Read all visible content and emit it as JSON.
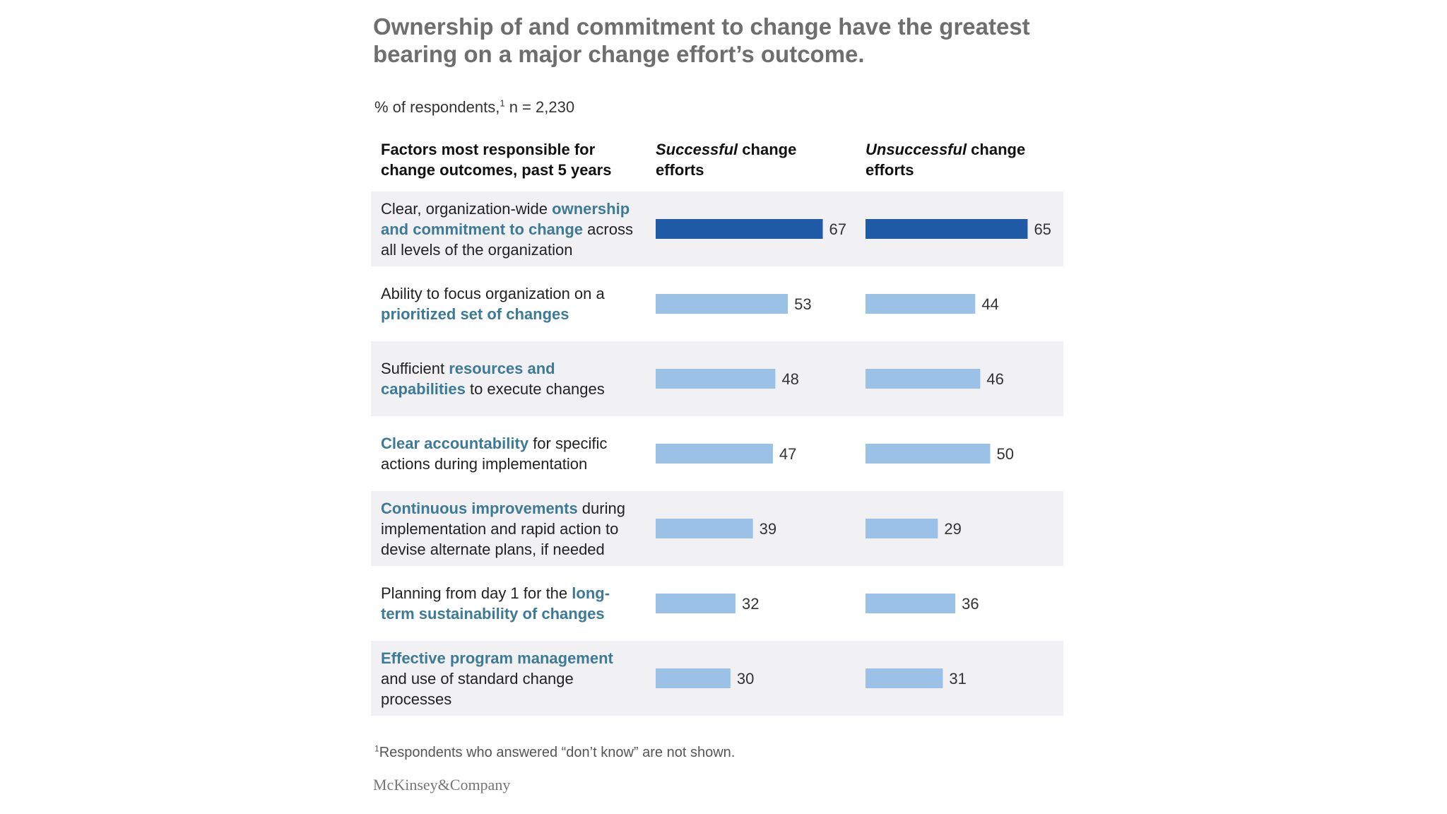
{
  "title": "Ownership of and commitment to change have the greatest bearing on a major change effort’s outcome.",
  "subtitle": {
    "text": "% of respondents,",
    "footnote_marker": "1",
    "n": " n = 2,230"
  },
  "column_headers": {
    "factors": "Factors most responsible for change outcomes, past 5 years",
    "successful_em": "Successful",
    "successful_rest": " change efforts",
    "unsuccessful_em": "Unsuccessful",
    "unsuccessful_rest": " change efforts"
  },
  "colors": {
    "highlight_bar": "#1f5aa6",
    "regular_bar": "#9bc2e6",
    "highlight_text": "#3d7a96",
    "row_shade": "#f1f1f3"
  },
  "chart_data": {
    "type": "bar",
    "orientation": "horizontal",
    "categories": [
      "Clear, organization-wide ownership and commitment to change across all levels of the organization",
      "Ability to focus organization on a prioritized set of changes",
      "Sufficient resources and capabilities to execute changes",
      "Clear accountability for specific actions during implementation",
      "Continuous improvements during implementation and rapid action to devise alternate plans, if needed",
      "Planning from day 1 for the long-term sustainability of changes",
      "Effective program management and use of standard change processes"
    ],
    "series": [
      {
        "name": "Successful change efforts",
        "values": [
          67,
          53,
          48,
          47,
          39,
          32,
          30
        ]
      },
      {
        "name": "Unsuccessful change efforts",
        "values": [
          65,
          44,
          46,
          50,
          29,
          36,
          31
        ]
      }
    ],
    "highlighted_category_index": 0,
    "xlim": [
      0,
      100
    ],
    "grid": false,
    "legend": "column headers"
  },
  "rows": [
    {
      "parts": [
        {
          "t": "Clear, organization-wide ",
          "hl": false
        },
        {
          "t": "ownership and commitment to change",
          "hl": true
        },
        {
          "t": " across all levels of the organization",
          "hl": false
        }
      ]
    },
    {
      "parts": [
        {
          "t": "Ability to focus organization on a ",
          "hl": false
        },
        {
          "t": "prioritized set of changes",
          "hl": true
        }
      ]
    },
    {
      "parts": [
        {
          "t": "Sufficient ",
          "hl": false
        },
        {
          "t": "resources and capabilities",
          "hl": true
        },
        {
          "t": " to execute changes",
          "hl": false
        }
      ]
    },
    {
      "parts": [
        {
          "t": "Clear accountability",
          "hl": true
        },
        {
          "t": " for specific actions during implementation",
          "hl": false
        }
      ]
    },
    {
      "parts": [
        {
          "t": "Continuous improvements",
          "hl": true
        },
        {
          "t": " during implementation and rapid action to devise alternate plans, if needed",
          "hl": false
        }
      ]
    },
    {
      "parts": [
        {
          "t": "Planning from day 1 for the ",
          "hl": false
        },
        {
          "t": "long-term sustainability of changes",
          "hl": true
        }
      ]
    },
    {
      "parts": [
        {
          "t": "Effective program management",
          "hl": true
        },
        {
          "t": " and use of standard change processes",
          "hl": false
        }
      ]
    }
  ],
  "footnote": {
    "marker": "1",
    "text": "Respondents who answered “don’t know” are not shown."
  },
  "brand": "McKinsey&Company"
}
